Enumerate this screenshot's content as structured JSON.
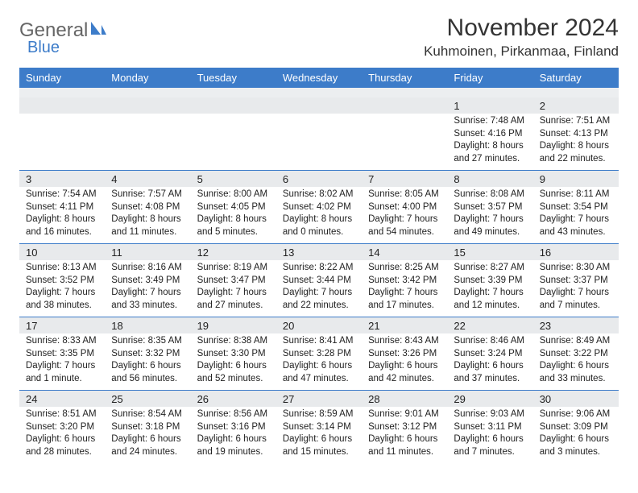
{
  "logo": {
    "text1": "General",
    "text2": "Blue"
  },
  "title": "November 2024",
  "location": "Kuhmoinen, Pirkanmaa, Finland",
  "colors": {
    "header_bg": "#3d7cc9",
    "header_text": "#ffffff",
    "daynum_bg": "#e8eaec",
    "spacer_bg": "#eceef0",
    "rule": "#3d7cc9",
    "text": "#222222",
    "logo_blue": "#3d7cc9"
  },
  "day_names": [
    "Sunday",
    "Monday",
    "Tuesday",
    "Wednesday",
    "Thursday",
    "Friday",
    "Saturday"
  ],
  "weeks": [
    [
      null,
      null,
      null,
      null,
      null,
      {
        "n": "1",
        "sr": "7:48 AM",
        "ss": "4:16 PM",
        "dl": "8 hours and 27 minutes."
      },
      {
        "n": "2",
        "sr": "7:51 AM",
        "ss": "4:13 PM",
        "dl": "8 hours and 22 minutes."
      }
    ],
    [
      {
        "n": "3",
        "sr": "7:54 AM",
        "ss": "4:11 PM",
        "dl": "8 hours and 16 minutes."
      },
      {
        "n": "4",
        "sr": "7:57 AM",
        "ss": "4:08 PM",
        "dl": "8 hours and 11 minutes."
      },
      {
        "n": "5",
        "sr": "8:00 AM",
        "ss": "4:05 PM",
        "dl": "8 hours and 5 minutes."
      },
      {
        "n": "6",
        "sr": "8:02 AM",
        "ss": "4:02 PM",
        "dl": "8 hours and 0 minutes."
      },
      {
        "n": "7",
        "sr": "8:05 AM",
        "ss": "4:00 PM",
        "dl": "7 hours and 54 minutes."
      },
      {
        "n": "8",
        "sr": "8:08 AM",
        "ss": "3:57 PM",
        "dl": "7 hours and 49 minutes."
      },
      {
        "n": "9",
        "sr": "8:11 AM",
        "ss": "3:54 PM",
        "dl": "7 hours and 43 minutes."
      }
    ],
    [
      {
        "n": "10",
        "sr": "8:13 AM",
        "ss": "3:52 PM",
        "dl": "7 hours and 38 minutes."
      },
      {
        "n": "11",
        "sr": "8:16 AM",
        "ss": "3:49 PM",
        "dl": "7 hours and 33 minutes."
      },
      {
        "n": "12",
        "sr": "8:19 AM",
        "ss": "3:47 PM",
        "dl": "7 hours and 27 minutes."
      },
      {
        "n": "13",
        "sr": "8:22 AM",
        "ss": "3:44 PM",
        "dl": "7 hours and 22 minutes."
      },
      {
        "n": "14",
        "sr": "8:25 AM",
        "ss": "3:42 PM",
        "dl": "7 hours and 17 minutes."
      },
      {
        "n": "15",
        "sr": "8:27 AM",
        "ss": "3:39 PM",
        "dl": "7 hours and 12 minutes."
      },
      {
        "n": "16",
        "sr": "8:30 AM",
        "ss": "3:37 PM",
        "dl": "7 hours and 7 minutes."
      }
    ],
    [
      {
        "n": "17",
        "sr": "8:33 AM",
        "ss": "3:35 PM",
        "dl": "7 hours and 1 minute."
      },
      {
        "n": "18",
        "sr": "8:35 AM",
        "ss": "3:32 PM",
        "dl": "6 hours and 56 minutes."
      },
      {
        "n": "19",
        "sr": "8:38 AM",
        "ss": "3:30 PM",
        "dl": "6 hours and 52 minutes."
      },
      {
        "n": "20",
        "sr": "8:41 AM",
        "ss": "3:28 PM",
        "dl": "6 hours and 47 minutes."
      },
      {
        "n": "21",
        "sr": "8:43 AM",
        "ss": "3:26 PM",
        "dl": "6 hours and 42 minutes."
      },
      {
        "n": "22",
        "sr": "8:46 AM",
        "ss": "3:24 PM",
        "dl": "6 hours and 37 minutes."
      },
      {
        "n": "23",
        "sr": "8:49 AM",
        "ss": "3:22 PM",
        "dl": "6 hours and 33 minutes."
      }
    ],
    [
      {
        "n": "24",
        "sr": "8:51 AM",
        "ss": "3:20 PM",
        "dl": "6 hours and 28 minutes."
      },
      {
        "n": "25",
        "sr": "8:54 AM",
        "ss": "3:18 PM",
        "dl": "6 hours and 24 minutes."
      },
      {
        "n": "26",
        "sr": "8:56 AM",
        "ss": "3:16 PM",
        "dl": "6 hours and 19 minutes."
      },
      {
        "n": "27",
        "sr": "8:59 AM",
        "ss": "3:14 PM",
        "dl": "6 hours and 15 minutes."
      },
      {
        "n": "28",
        "sr": "9:01 AM",
        "ss": "3:12 PM",
        "dl": "6 hours and 11 minutes."
      },
      {
        "n": "29",
        "sr": "9:03 AM",
        "ss": "3:11 PM",
        "dl": "6 hours and 7 minutes."
      },
      {
        "n": "30",
        "sr": "9:06 AM",
        "ss": "3:09 PM",
        "dl": "6 hours and 3 minutes."
      }
    ]
  ],
  "labels": {
    "sunrise": "Sunrise:",
    "sunset": "Sunset:",
    "daylight": "Daylight:"
  }
}
